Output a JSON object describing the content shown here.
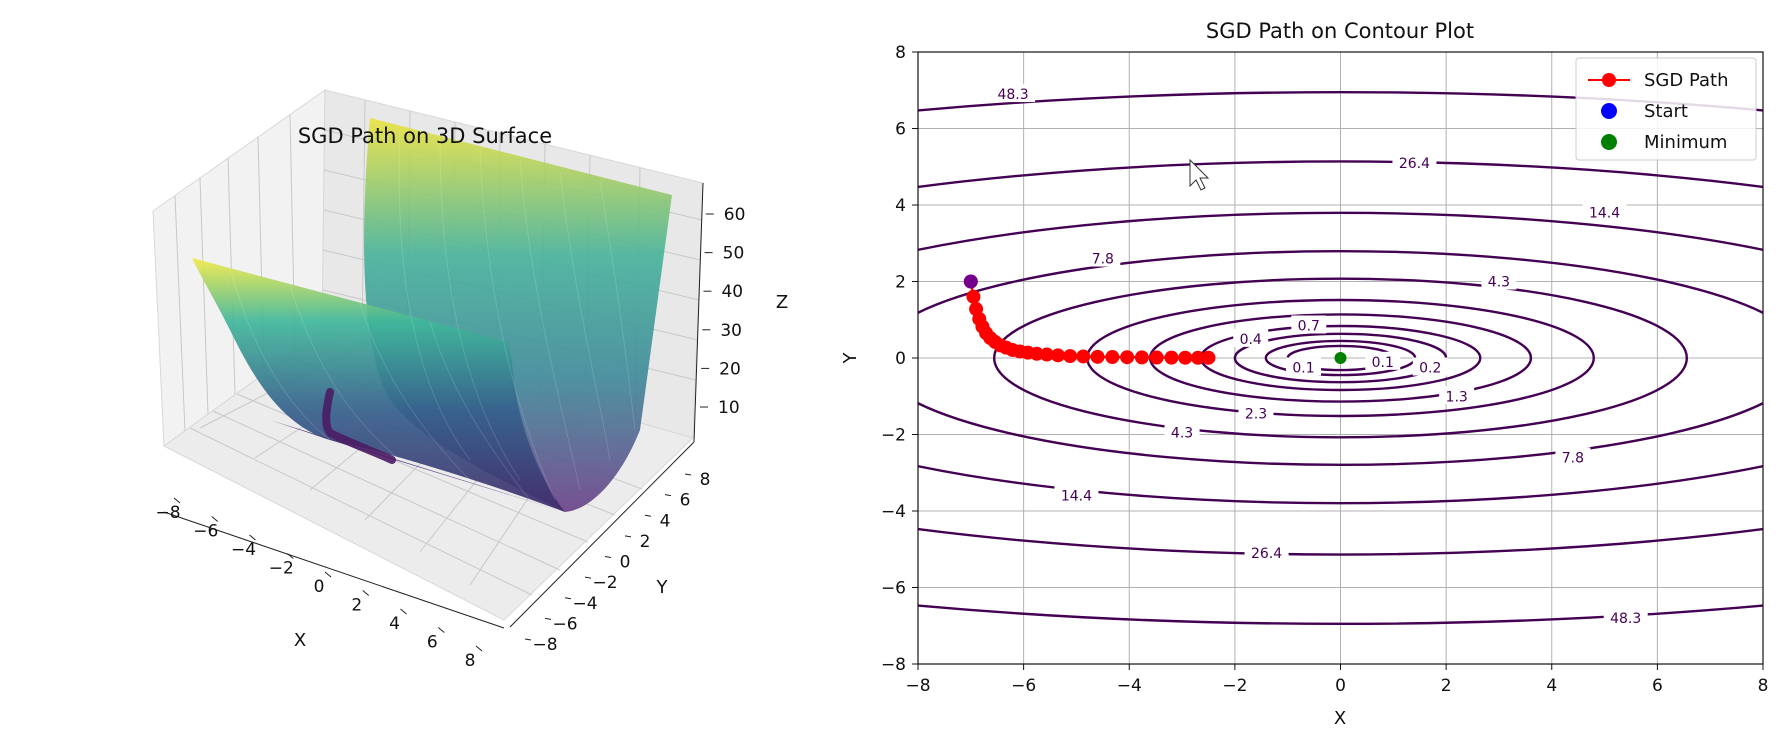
{
  "chart_data": [
    {
      "type": "surface3d",
      "title": "SGD Path on 3D Surface",
      "xlabel": "X",
      "ylabel": "Y",
      "zlabel": "Z",
      "xticks": [
        -8,
        -6,
        -4,
        -2,
        0,
        2,
        4,
        6,
        8
      ],
      "yticks": [
        -8,
        -6,
        -4,
        -2,
        0,
        2,
        4,
        6,
        8
      ],
      "zticks": [
        10,
        20,
        30,
        40,
        50,
        60
      ],
      "xlim": [
        -8,
        8
      ],
      "ylim": [
        -8,
        8
      ],
      "zlim": [
        0,
        65
      ],
      "function": "z = 0.1*x^2 + y^2",
      "colormap": "viridis"
    },
    {
      "type": "contour",
      "title": "SGD Path on Contour Plot",
      "xlabel": "X",
      "ylabel": "Y",
      "xlim": [
        -8,
        8
      ],
      "ylim": [
        -8,
        8
      ],
      "xticks": [
        -8,
        -6,
        -4,
        -2,
        0,
        2,
        4,
        6,
        8
      ],
      "yticks": [
        -8,
        -6,
        -4,
        -2,
        0,
        2,
        4,
        6,
        8
      ],
      "grid": true,
      "legend_position": "top-right",
      "levels": [
        0.1,
        0.2,
        0.4,
        0.7,
        1.3,
        2.3,
        4.3,
        7.8,
        14.4,
        26.4,
        48.3
      ],
      "contour_labels": [
        {
          "text": "48.3",
          "x": -6.2,
          "y": 6.9
        },
        {
          "text": "26.4",
          "x": 1.4,
          "y": 5.1
        },
        {
          "text": "14.4",
          "x": 5.0,
          "y": 3.8
        },
        {
          "text": "7.8",
          "x": -4.5,
          "y": 2.6
        },
        {
          "text": "4.3",
          "x": 3.0,
          "y": 2.0
        },
        {
          "text": "0.7",
          "x": -0.6,
          "y": 0.85
        },
        {
          "text": "0.4",
          "x": -1.7,
          "y": 0.5
        },
        {
          "text": "0.2",
          "x": 1.7,
          "y": -0.25
        },
        {
          "text": "0.1",
          "x": -0.7,
          "y": -0.25
        },
        {
          "text": "0.1",
          "x": 0.8,
          "y": -0.1
        },
        {
          "text": "1.3",
          "x": 2.2,
          "y": -1.0
        },
        {
          "text": "2.3",
          "x": -1.6,
          "y": -1.45
        },
        {
          "text": "4.3",
          "x": -3.0,
          "y": -1.95
        },
        {
          "text": "7.8",
          "x": 4.4,
          "y": -2.6
        },
        {
          "text": "14.4",
          "x": -5.0,
          "y": -3.6
        },
        {
          "text": "26.4",
          "x": -1.4,
          "y": -5.1
        },
        {
          "text": "48.3",
          "x": 5.4,
          "y": -6.8
        }
      ],
      "series": [
        {
          "name": "SGD Path",
          "color": "#ff0000",
          "marker": "o",
          "x": [
            -7.0,
            -6.95,
            -6.9,
            -6.84,
            -6.78,
            -6.71,
            -6.63,
            -6.54,
            -6.44,
            -6.33,
            -6.21,
            -6.07,
            -5.92,
            -5.75,
            -5.56,
            -5.35,
            -5.12,
            -4.87,
            -4.6,
            -4.32,
            -4.04,
            -3.76,
            -3.48,
            -3.2,
            -2.94,
            -2.7,
            -2.5
          ],
          "y": [
            2.0,
            1.6,
            1.28,
            1.02,
            0.82,
            0.65,
            0.52,
            0.42,
            0.33,
            0.27,
            0.21,
            0.17,
            0.14,
            0.11,
            0.09,
            0.07,
            0.05,
            0.04,
            0.03,
            0.025,
            0.02,
            0.015,
            0.012,
            0.01,
            0.008,
            0.006,
            0.005
          ]
        },
        {
          "name": "Start",
          "color": "#0000ff",
          "x": [
            -7.0
          ],
          "y": [
            2.0
          ]
        },
        {
          "name": "Minimum",
          "color": "#008000",
          "x": [
            0.0
          ],
          "y": [
            0.0
          ]
        }
      ]
    }
  ]
}
